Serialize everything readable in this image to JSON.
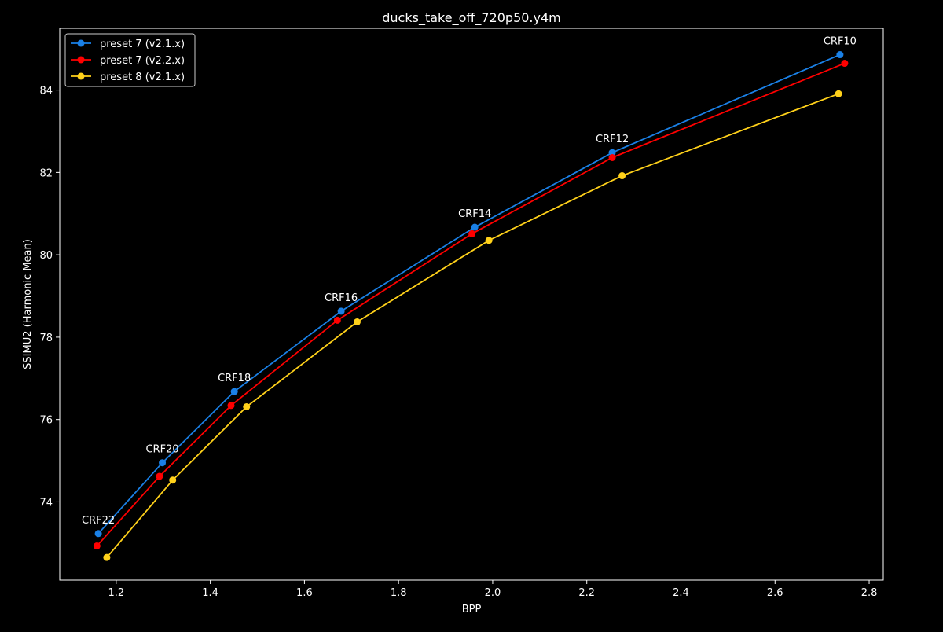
{
  "chart_data": {
    "type": "line",
    "title": "ducks_take_off_720p50.y4m",
    "xlabel": "BPP",
    "ylabel": "SSIMU2 (Harmonic Mean)",
    "xlim": [
      1.08,
      2.83
    ],
    "ylim": [
      72.1,
      85.5
    ],
    "xticks": [
      1.2,
      1.4,
      1.6,
      1.8,
      2.0,
      2.2,
      2.4,
      2.6,
      2.8
    ],
    "xtick_labels": [
      "1.2",
      "1.4",
      "1.6",
      "1.8",
      "2.0",
      "2.2",
      "2.4",
      "2.6",
      "2.8"
    ],
    "yticks": [
      74,
      76,
      78,
      80,
      82,
      84
    ],
    "ytick_labels": [
      "74",
      "76",
      "78",
      "80",
      "82",
      "84"
    ],
    "grid": false,
    "legend_position": "top-left",
    "background": "#000000",
    "foreground": "#ffffff",
    "series": [
      {
        "name": "preset 7 (v2.1.x)",
        "color": "#1a80e6",
        "x": [
          1.162,
          1.298,
          1.451,
          1.678,
          1.962,
          2.254,
          2.738
        ],
        "y": [
          73.23,
          74.95,
          76.68,
          78.63,
          80.67,
          82.48,
          84.86
        ]
      },
      {
        "name": "preset 7 (v2.2.x)",
        "color": "#ff0000",
        "x": [
          1.159,
          1.292,
          1.444,
          1.67,
          1.956,
          2.254,
          2.748
        ],
        "y": [
          72.93,
          74.62,
          76.34,
          78.41,
          80.51,
          82.36,
          84.65
        ]
      },
      {
        "name": "preset 8 (v2.1.x)",
        "color": "#ffd11a",
        "x": [
          1.18,
          1.32,
          1.477,
          1.712,
          1.992,
          2.275,
          2.735
        ],
        "y": [
          72.65,
          74.53,
          76.31,
          78.37,
          80.35,
          81.92,
          83.91
        ]
      }
    ],
    "annotations": [
      {
        "text": "CRF22",
        "x": 1.162,
        "y": 73.23
      },
      {
        "text": "CRF20",
        "x": 1.298,
        "y": 74.95
      },
      {
        "text": "CRF18",
        "x": 1.451,
        "y": 76.68
      },
      {
        "text": "CRF16",
        "x": 1.678,
        "y": 78.63
      },
      {
        "text": "CRF14",
        "x": 1.962,
        "y": 80.67
      },
      {
        "text": "CRF12",
        "x": 2.254,
        "y": 82.48
      },
      {
        "text": "CRF10",
        "x": 2.738,
        "y": 84.86
      }
    ]
  }
}
